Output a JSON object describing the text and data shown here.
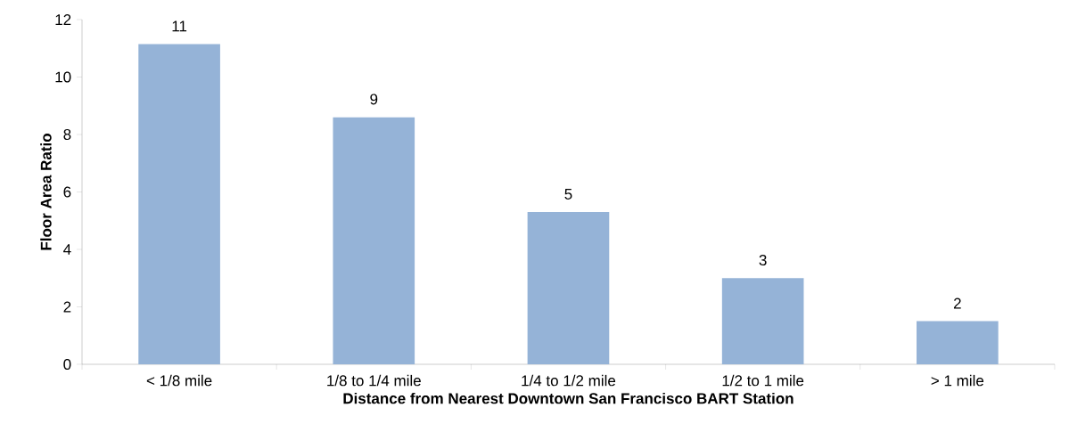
{
  "chart_data": {
    "type": "bar",
    "xlabel": "Distance from Nearest Downtown San Francisco BART Station",
    "ylabel": "Floor Area Ratio",
    "categories": [
      "< 1/8 mile",
      "1/8 to 1/4 mile",
      "1/4 to 1/2 mile",
      "1/2 to 1 mile",
      "> 1 mile"
    ],
    "values": [
      11.15,
      8.6,
      5.3,
      3.0,
      1.5
    ],
    "value_labels": [
      "11",
      "9",
      "5",
      "3",
      "2"
    ],
    "color": "#95b3d7",
    "ylim": [
      0,
      12
    ],
    "yticks": [
      0,
      2,
      4,
      6,
      8,
      10,
      12
    ]
  }
}
